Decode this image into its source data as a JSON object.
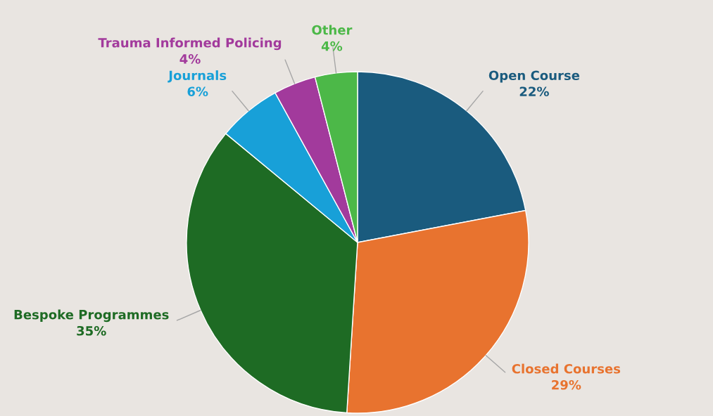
{
  "chart_data": {
    "type": "pie",
    "categories": [
      "Open Course",
      "Closed Courses",
      "Bespoke Programmes",
      "Journals",
      "Trauma Informed Policing",
      "Other"
    ],
    "values": [
      22,
      29,
      35,
      6,
      4,
      4
    ],
    "value_labels": [
      "22%",
      "29%",
      "35%",
      "6%",
      "4%",
      "4%"
    ],
    "colors": [
      "#1a5b7e",
      "#e8732f",
      "#1e6b24",
      "#18a0d8",
      "#a23a9c",
      "#4cb848"
    ],
    "legend": false
  }
}
